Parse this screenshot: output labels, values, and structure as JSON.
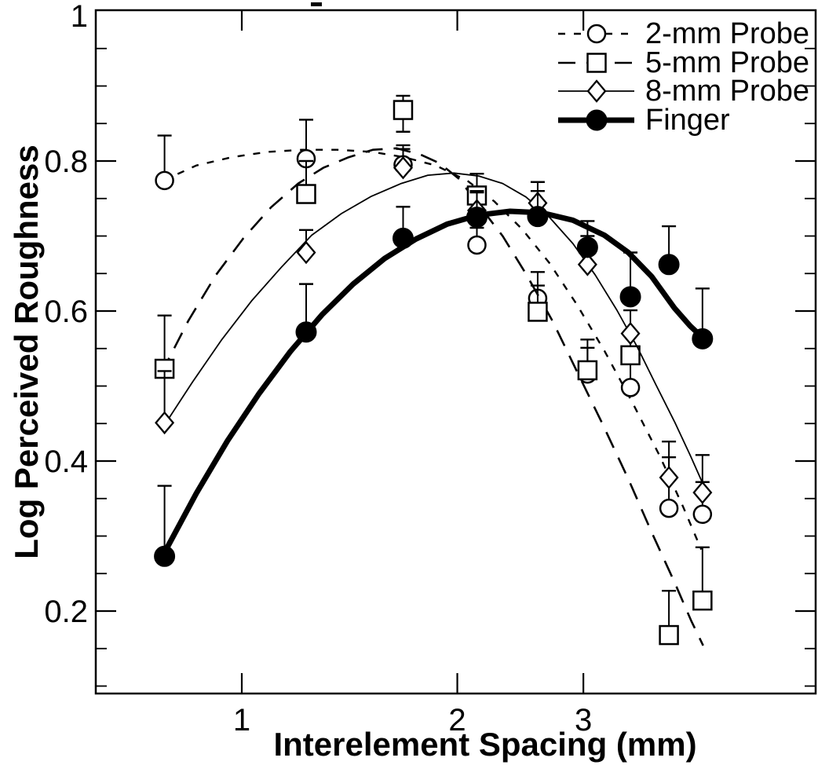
{
  "figure": {
    "background": "#ffffff",
    "ink_color": "#000000",
    "kind": "scanned scientific line chart"
  },
  "chart_data": {
    "type": "line",
    "title": "",
    "xlabel": "Interelement Spacing (mm)",
    "ylabel": "Log Perceived Roughness",
    "x_scale": "log",
    "y_scale": "linear",
    "xlim": [
      0.625,
      6.3
    ],
    "ylim": [
      0.09,
      1.0
    ],
    "x_ticks": [
      1,
      2,
      3
    ],
    "x_tick_labels": [
      "1",
      "2",
      "3"
    ],
    "y_ticks": [
      1,
      0.8,
      0.6,
      0.4,
      0.2
    ],
    "y_tick_labels": [
      "1",
      "0.8",
      "0.6",
      "0.4",
      "0.2"
    ],
    "y_minor_tick_step": 0.05,
    "grid": false,
    "legend_position": "top-right-inside",
    "point_format": "[x_mm, log_roughness, err_up, err_down(optional)]",
    "series": [
      {
        "name": "2-mm Probe",
        "marker": "open-circle",
        "line_style": "short-dash",
        "points": [
          [
            0.78,
            0.774,
            0.06
          ],
          [
            1.23,
            0.803,
            0.052
          ],
          [
            1.68,
            0.795,
            0.026
          ],
          [
            2.13,
            0.688,
            0.023
          ],
          [
            2.59,
            0.617,
            0.035
          ],
          [
            3.04,
            0.516,
            0.035
          ],
          [
            3.49,
            0.498,
            0.042
          ],
          [
            3.95,
            0.337,
            0.068
          ],
          [
            4.4,
            0.329,
            0.043
          ]
        ],
        "fit_curve": [
          [
            0.777,
            0.774
          ],
          [
            0.864,
            0.794
          ],
          [
            0.968,
            0.805
          ],
          [
            1.084,
            0.812
          ],
          [
            1.215,
            0.815
          ],
          [
            1.361,
            0.815
          ],
          [
            1.525,
            0.812
          ],
          [
            1.686,
            0.805
          ],
          [
            1.866,
            0.794
          ],
          [
            2.064,
            0.774
          ],
          [
            2.254,
            0.746
          ],
          [
            2.464,
            0.709
          ],
          [
            2.69,
            0.664
          ],
          [
            2.936,
            0.609
          ],
          [
            3.21,
            0.547
          ],
          [
            3.508,
            0.479
          ],
          [
            3.834,
            0.407
          ],
          [
            4.135,
            0.339
          ],
          [
            4.383,
            0.282
          ]
        ]
      },
      {
        "name": "5-mm Probe",
        "marker": "open-square",
        "line_style": "long-dash",
        "points": [
          [
            0.78,
            0.523,
            0.071
          ],
          [
            1.23,
            0.756,
            0.044
          ],
          [
            1.68,
            0.868,
            0.019,
            0.029
          ],
          [
            2.13,
            0.754,
            0.029
          ],
          [
            2.59,
            0.599,
            0.035
          ],
          [
            3.04,
            0.521,
            0.041
          ],
          [
            3.49,
            0.541,
            0.029
          ],
          [
            3.95,
            0.168,
            0.059
          ],
          [
            4.4,
            0.214,
            0.071
          ]
        ],
        "fit_curve": [
          [
            0.772,
            0.517
          ],
          [
            0.842,
            0.587
          ],
          [
            0.92,
            0.648
          ],
          [
            1.005,
            0.697
          ],
          [
            1.098,
            0.738
          ],
          [
            1.199,
            0.77
          ],
          [
            1.3,
            0.791
          ],
          [
            1.41,
            0.805
          ],
          [
            1.524,
            0.815
          ],
          [
            1.645,
            0.817
          ],
          [
            1.773,
            0.809
          ],
          [
            1.89,
            0.797
          ],
          [
            2.012,
            0.776
          ],
          [
            2.132,
            0.744
          ],
          [
            2.314,
            0.7
          ],
          [
            2.5,
            0.648
          ],
          [
            2.716,
            0.587
          ],
          [
            2.937,
            0.52
          ],
          [
            3.192,
            0.449
          ],
          [
            3.467,
            0.376
          ],
          [
            3.737,
            0.305
          ],
          [
            4.024,
            0.238
          ],
          [
            4.244,
            0.187
          ],
          [
            4.41,
            0.154
          ]
        ]
      },
      {
        "name": "8-mm Probe",
        "marker": "open-diamond",
        "line_style": "solid-thin",
        "points": [
          [
            0.78,
            0.451,
            0.069
          ],
          [
            1.23,
            0.678,
            0.03
          ],
          [
            1.68,
            0.791,
            0.025
          ],
          [
            2.13,
            0.734,
            0.026
          ],
          [
            2.59,
            0.744,
            0.028
          ],
          [
            3.04,
            0.662,
            0.038
          ],
          [
            3.49,
            0.57,
            0.031
          ],
          [
            3.95,
            0.378,
            0.048
          ],
          [
            4.4,
            0.358,
            0.05
          ]
        ],
        "fit_curve": [
          [
            0.775,
            0.444
          ],
          [
            0.853,
            0.505
          ],
          [
            0.938,
            0.562
          ],
          [
            1.033,
            0.614
          ],
          [
            1.137,
            0.659
          ],
          [
            1.252,
            0.701
          ],
          [
            1.378,
            0.73
          ],
          [
            1.517,
            0.753
          ],
          [
            1.67,
            0.77
          ],
          [
            1.819,
            0.781
          ],
          [
            1.977,
            0.784
          ],
          [
            2.143,
            0.78
          ],
          [
            2.314,
            0.77
          ],
          [
            2.494,
            0.752
          ],
          [
            2.69,
            0.725
          ],
          [
            2.901,
            0.69
          ],
          [
            3.117,
            0.648
          ],
          [
            3.342,
            0.601
          ],
          [
            3.568,
            0.552
          ],
          [
            3.787,
            0.502
          ],
          [
            4.024,
            0.452
          ],
          [
            4.233,
            0.407
          ],
          [
            4.414,
            0.368
          ]
        ]
      },
      {
        "name": "Finger",
        "marker": "filled-circle",
        "line_style": "solid-thick",
        "points": [
          [
            0.78,
            0.273,
            0.094
          ],
          [
            1.23,
            0.572,
            0.064
          ],
          [
            1.68,
            0.697,
            0.042
          ],
          [
            2.13,
            0.725,
            0.033
          ],
          [
            2.59,
            0.726,
            0.034
          ],
          [
            3.04,
            0.685,
            0.035
          ],
          [
            3.49,
            0.619,
            0.059
          ],
          [
            3.95,
            0.662,
            0.051
          ],
          [
            4.4,
            0.563,
            0.067
          ]
        ],
        "fit_curve": [
          [
            0.775,
            0.273
          ],
          [
            0.864,
            0.357
          ],
          [
            0.955,
            0.427
          ],
          [
            1.057,
            0.49
          ],
          [
            1.169,
            0.546
          ],
          [
            1.294,
            0.595
          ],
          [
            1.431,
            0.636
          ],
          [
            1.583,
            0.67
          ],
          [
            1.751,
            0.696
          ],
          [
            1.937,
            0.716
          ],
          [
            2.143,
            0.728
          ],
          [
            2.37,
            0.733
          ],
          [
            2.623,
            0.731
          ],
          [
            2.901,
            0.721
          ],
          [
            3.21,
            0.701
          ],
          [
            3.467,
            0.678
          ],
          [
            3.737,
            0.646
          ],
          [
            4.02,
            0.604
          ],
          [
            4.23,
            0.58
          ],
          [
            4.41,
            0.564
          ]
        ]
      }
    ]
  },
  "legend": {
    "entries": [
      {
        "label": "2-mm Probe",
        "marker": "open-circle",
        "line_style": "short-dash"
      },
      {
        "label": "5-mm Probe",
        "marker": "open-square",
        "line_style": "long-dash"
      },
      {
        "label": "8-mm Probe",
        "marker": "open-diamond",
        "line_style": "solid-thin"
      },
      {
        "label": "Finger",
        "marker": "filled-circle",
        "line_style": "solid-thick"
      }
    ]
  }
}
